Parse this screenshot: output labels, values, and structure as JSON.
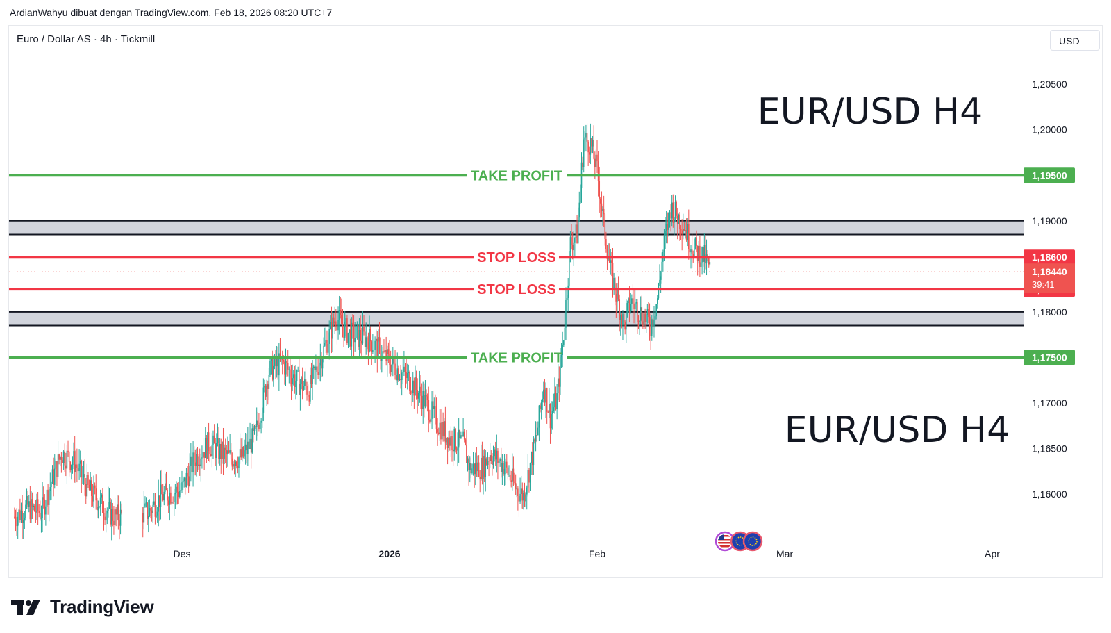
{
  "header": {
    "caption": "ArdianWahyu dibuat dengan TradingView.com, Feb 18, 2026 08:20 UTC+7"
  },
  "toolbar": {
    "symbol": "Euro / Dollar AS · 4h · Tickmill",
    "currency": "USD"
  },
  "brand": {
    "name": "TradingView"
  },
  "colors": {
    "bull": "#26a69a",
    "bear": "#ef5350",
    "take_profit": "#4caf50",
    "stop_loss": "#f23645",
    "zone": "#d1d4dc",
    "axis_text": "#131722"
  },
  "chart_data": {
    "type": "candlestick",
    "symbol": "EUR/USD",
    "timeframe": "4h",
    "ylim": [
      1.1555,
      1.2115
    ],
    "y_ticks": [
      "1,20500",
      "1,20000",
      "1,19000",
      "1,18000",
      "1,17000",
      "1,16500",
      "1,16000"
    ],
    "x_ticks": [
      {
        "label": "Des",
        "date": "2025-12-01"
      },
      {
        "label": "2026",
        "date": "2026-01-01"
      },
      {
        "label": "Feb",
        "date": "2026-02-01"
      },
      {
        "label": "Mar",
        "date": "2026-03-01"
      },
      {
        "label": "Apr",
        "date": "2026-04-01"
      }
    ],
    "annotations": [
      {
        "text": "EUR/USD H4",
        "position": "top-right"
      },
      {
        "text": "EUR/USD H4",
        "position": "bottom-right"
      }
    ],
    "levels": [
      {
        "label": "TAKE PROFIT",
        "value": 1.195,
        "price_label": "1,19500",
        "kind": "take_profit"
      },
      {
        "label": "STOP LOSS",
        "value": 1.186,
        "price_label": "1,18600",
        "kind": "stop_loss"
      },
      {
        "label": "STOP LOSS",
        "value": 1.1825,
        "price_label": "1,18250",
        "kind": "stop_loss"
      },
      {
        "label": "TAKE PROFIT",
        "value": 1.175,
        "price_label": "1,17500",
        "kind": "take_profit"
      }
    ],
    "zones": [
      {
        "top": 1.19,
        "bottom": 1.1885
      },
      {
        "top": 1.18,
        "bottom": 1.1785
      }
    ],
    "last_price": {
      "value": 1.1844,
      "label": "1,18440",
      "countdown": "39:41"
    },
    "price_path": [
      {
        "date": "2025-11-06",
        "price": 1.1575
      },
      {
        "date": "2025-11-08",
        "price": 1.1585
      },
      {
        "date": "2025-11-10",
        "price": 1.158
      },
      {
        "date": "2025-11-13",
        "price": 1.1645
      },
      {
        "date": "2025-11-15",
        "price": 1.1635
      },
      {
        "date": "2025-11-17",
        "price": 1.1605
      },
      {
        "date": "2025-11-20",
        "price": 1.158
      },
      {
        "date": "2025-11-21",
        "price": 1.1575
      },
      {
        "date": "2025-11-26",
        "price": 1.158
      },
      {
        "date": "2025-11-28",
        "price": 1.1598
      },
      {
        "date": "2025-12-01",
        "price": 1.1605
      },
      {
        "date": "2025-12-03",
        "price": 1.164
      },
      {
        "date": "2025-12-05",
        "price": 1.1655
      },
      {
        "date": "2025-12-08",
        "price": 1.164
      },
      {
        "date": "2025-12-10",
        "price": 1.164
      },
      {
        "date": "2025-12-12",
        "price": 1.1665
      },
      {
        "date": "2025-12-14",
        "price": 1.1735
      },
      {
        "date": "2025-12-16",
        "price": 1.1745
      },
      {
        "date": "2025-12-18",
        "price": 1.1725
      },
      {
        "date": "2025-12-20",
        "price": 1.1715
      },
      {
        "date": "2025-12-23",
        "price": 1.1775
      },
      {
        "date": "2025-12-24",
        "price": 1.1795
      },
      {
        "date": "2025-12-26",
        "price": 1.1775
      },
      {
        "date": "2025-12-29",
        "price": 1.177
      },
      {
        "date": "2026-01-01",
        "price": 1.1745
      },
      {
        "date": "2026-01-04",
        "price": 1.1725
      },
      {
        "date": "2026-01-06",
        "price": 1.1705
      },
      {
        "date": "2026-01-08",
        "price": 1.168
      },
      {
        "date": "2026-01-10",
        "price": 1.166
      },
      {
        "date": "2026-01-12",
        "price": 1.1655
      },
      {
        "date": "2026-01-13",
        "price": 1.1628
      },
      {
        "date": "2026-01-15",
        "price": 1.163
      },
      {
        "date": "2026-01-16",
        "price": 1.1645
      },
      {
        "date": "2026-01-18",
        "price": 1.1632
      },
      {
        "date": "2026-01-20",
        "price": 1.1605
      },
      {
        "date": "2026-01-21",
        "price": 1.1598
      },
      {
        "date": "2026-01-23",
        "price": 1.1665
      },
      {
        "date": "2026-01-24",
        "price": 1.172
      },
      {
        "date": "2026-01-25",
        "price": 1.1685
      },
      {
        "date": "2026-01-26",
        "price": 1.1705
      },
      {
        "date": "2026-01-27",
        "price": 1.1775
      },
      {
        "date": "2026-01-28",
        "price": 1.1875
      },
      {
        "date": "2026-01-29",
        "price": 1.1885
      },
      {
        "date": "2026-01-30",
        "price": 1.199
      },
      {
        "date": "2026-01-31",
        "price": 1.1985
      },
      {
        "date": "2026-02-01",
        "price": 1.1955
      },
      {
        "date": "2026-02-02",
        "price": 1.1895
      },
      {
        "date": "2026-02-03",
        "price": 1.1845
      },
      {
        "date": "2026-02-04",
        "price": 1.1815
      },
      {
        "date": "2026-02-05",
        "price": 1.1785
      },
      {
        "date": "2026-02-06",
        "price": 1.1812
      },
      {
        "date": "2026-02-08",
        "price": 1.1795
      },
      {
        "date": "2026-02-09",
        "price": 1.1785
      },
      {
        "date": "2026-02-10",
        "price": 1.1815
      },
      {
        "date": "2026-02-11",
        "price": 1.1875
      },
      {
        "date": "2026-02-12",
        "price": 1.1915
      },
      {
        "date": "2026-02-13",
        "price": 1.1905
      },
      {
        "date": "2026-02-14",
        "price": 1.1895
      },
      {
        "date": "2026-02-15",
        "price": 1.1875
      },
      {
        "date": "2026-02-16",
        "price": 1.1865
      },
      {
        "date": "2026-02-17",
        "price": 1.186
      },
      {
        "date": "2026-02-18",
        "price": 1.1844
      }
    ]
  }
}
